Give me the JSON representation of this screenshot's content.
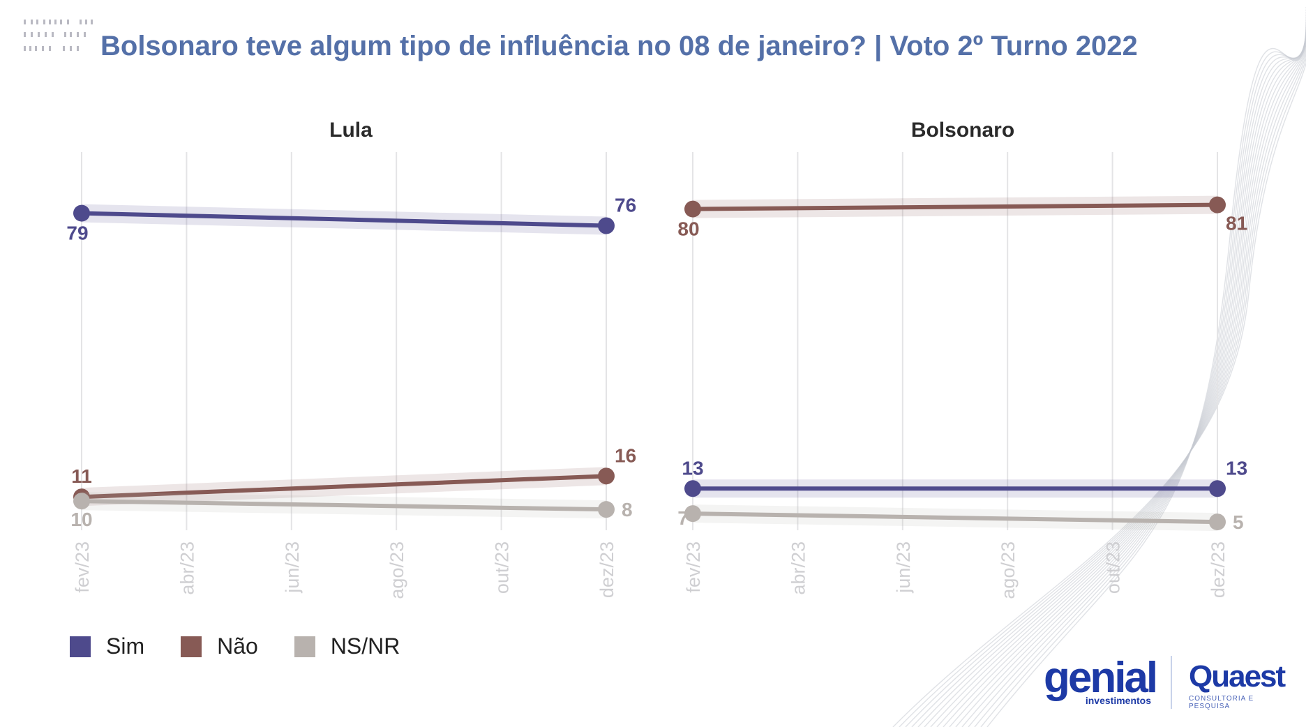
{
  "title": "Bolsonaro teve algum tipo de influência no 08 de janeiro? | Voto 2º Turno 2022",
  "colors": {
    "sim": "#4e4a8c",
    "nao": "#875a55",
    "nsnr": "#b8b2ae",
    "title": "#5470a8"
  },
  "legend": [
    {
      "label": "Sim",
      "color": "#4e4a8c"
    },
    {
      "label": "Não",
      "color": "#875a55"
    },
    {
      "label": "NS/NR",
      "color": "#b8b2ae"
    }
  ],
  "chart_data": [
    {
      "type": "line",
      "title": "Lula",
      "x": [
        "fev/23",
        "abr/23",
        "jun/23",
        "ago/23",
        "out/23",
        "dez/23"
      ],
      "series": [
        {
          "name": "Sim",
          "points": [
            [
              "fev/23",
              79
            ],
            [
              "dez/23",
              76
            ]
          ]
        },
        {
          "name": "Não",
          "points": [
            [
              "fev/23",
              11
            ],
            [
              "dez/23",
              16
            ]
          ]
        },
        {
          "name": "NS/NR",
          "points": [
            [
              "fev/23",
              10
            ],
            [
              "dez/23",
              8
            ]
          ]
        }
      ],
      "labels": [
        {
          "series": "Sim",
          "x": "fev/23",
          "text": "79"
        },
        {
          "series": "Sim",
          "x": "dez/23",
          "text": "76"
        },
        {
          "series": "Não",
          "x": "fev/23",
          "text": "11"
        },
        {
          "series": "Não",
          "x": "dez/23",
          "text": "16"
        },
        {
          "series": "NS/NR",
          "x": "fev/23",
          "text": "10"
        },
        {
          "series": "NS/NR",
          "x": "dez/23",
          "text": "8"
        }
      ],
      "ylim": [
        0,
        90
      ],
      "grid": "vertical"
    },
    {
      "type": "line",
      "title": "Bolsonaro",
      "x": [
        "fev/23",
        "abr/23",
        "jun/23",
        "ago/23",
        "out/23",
        "dez/23"
      ],
      "series": [
        {
          "name": "Sim",
          "points": [
            [
              "fev/23",
              13
            ],
            [
              "dez/23",
              13
            ]
          ]
        },
        {
          "name": "Não",
          "points": [
            [
              "fev/23",
              80
            ],
            [
              "dez/23",
              81
            ]
          ]
        },
        {
          "name": "NS/NR",
          "points": [
            [
              "fev/23",
              7
            ],
            [
              "dez/23",
              5
            ]
          ]
        }
      ],
      "labels": [
        {
          "series": "Sim",
          "x": "fev/23",
          "text": "13"
        },
        {
          "series": "Sim",
          "x": "dez/23",
          "text": "13"
        },
        {
          "series": "Não",
          "x": "fev/23",
          "text": "80"
        },
        {
          "series": "Não",
          "x": "dez/23",
          "text": "81"
        },
        {
          "series": "NS/NR",
          "x": "fev/23",
          "text": "7"
        },
        {
          "series": "NS/NR",
          "x": "dez/23",
          "text": "5"
        }
      ],
      "ylim": [
        0,
        90
      ],
      "grid": "vertical"
    }
  ],
  "logos": {
    "genial": {
      "word": "genial",
      "sub": "investimentos"
    },
    "quaest": {
      "word": "Quaest",
      "sub": "CONSULTORIA E PESQUISA"
    }
  }
}
